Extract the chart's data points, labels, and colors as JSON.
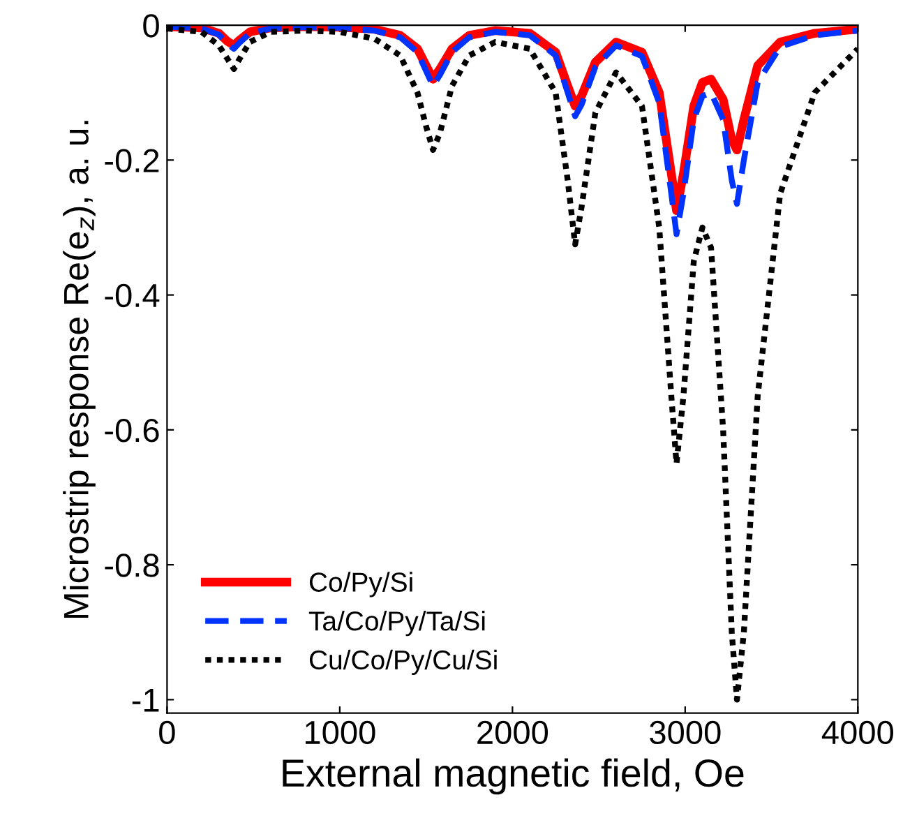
{
  "chart_data": {
    "type": "line",
    "xlabel": "External magnetic field, Oe",
    "ylabel": "Microstrip response Re(e$_{z}$), a. u.",
    "x": [
      0,
      200,
      300,
      350,
      387,
      420,
      480,
      600,
      800,
      1000,
      1200,
      1350,
      1450,
      1500,
      1540,
      1580,
      1650,
      1750,
      1900,
      2100,
      2250,
      2320,
      2363,
      2400,
      2480,
      2600,
      2750,
      2850,
      2920,
      2950,
      2990,
      3050,
      3100,
      3150,
      3220,
      3270,
      3300,
      3340,
      3420,
      3550,
      3750,
      4000
    ],
    "series": [
      {
        "name": "Co/Py/Si",
        "color": "#ff0000",
        "line_style": "solid",
        "values": [
          -0.002,
          -0.004,
          -0.012,
          -0.024,
          -0.03,
          -0.022,
          -0.01,
          -0.004,
          -0.002,
          -0.003,
          -0.006,
          -0.015,
          -0.035,
          -0.06,
          -0.08,
          -0.065,
          -0.035,
          -0.015,
          -0.008,
          -0.012,
          -0.04,
          -0.09,
          -0.12,
          -0.105,
          -0.055,
          -0.025,
          -0.04,
          -0.1,
          -0.22,
          -0.275,
          -0.22,
          -0.12,
          -0.085,
          -0.08,
          -0.11,
          -0.17,
          -0.185,
          -0.14,
          -0.06,
          -0.025,
          -0.012,
          -0.006
        ]
      },
      {
        "name": "Ta/Co/Py/Ta/Si",
        "color": "#0033ff",
        "line_style": "dashed",
        "values": [
          -0.002,
          -0.005,
          -0.014,
          -0.028,
          -0.035,
          -0.026,
          -0.012,
          -0.005,
          -0.003,
          -0.004,
          -0.008,
          -0.018,
          -0.04,
          -0.068,
          -0.09,
          -0.074,
          -0.04,
          -0.018,
          -0.01,
          -0.015,
          -0.045,
          -0.1,
          -0.135,
          -0.118,
          -0.062,
          -0.03,
          -0.046,
          -0.115,
          -0.25,
          -0.31,
          -0.25,
          -0.14,
          -0.105,
          -0.1,
          -0.14,
          -0.23,
          -0.265,
          -0.2,
          -0.085,
          -0.032,
          -0.015,
          -0.008
        ]
      },
      {
        "name": "Cu/Co/Py/Cu/Si",
        "color": "#000000",
        "line_style": "dotted",
        "values": [
          -0.005,
          -0.01,
          -0.03,
          -0.05,
          -0.065,
          -0.05,
          -0.025,
          -0.01,
          -0.008,
          -0.01,
          -0.02,
          -0.045,
          -0.1,
          -0.15,
          -0.185,
          -0.16,
          -0.09,
          -0.045,
          -0.025,
          -0.035,
          -0.1,
          -0.23,
          -0.325,
          -0.27,
          -0.13,
          -0.07,
          -0.12,
          -0.3,
          -0.55,
          -0.65,
          -0.55,
          -0.35,
          -0.3,
          -0.33,
          -0.6,
          -0.9,
          -1.0,
          -0.9,
          -0.55,
          -0.25,
          -0.1,
          -0.035
        ]
      }
    ],
    "xlim": [
      0,
      4000
    ],
    "ylim": [
      -1.02,
      0
    ],
    "xticks": [
      0,
      1000,
      2000,
      3000,
      4000
    ],
    "yticks": [
      0,
      -0.2,
      -0.4,
      -0.6,
      -0.8,
      -1
    ],
    "grid": false,
    "legend": "bottom left",
    "marker": "none"
  }
}
